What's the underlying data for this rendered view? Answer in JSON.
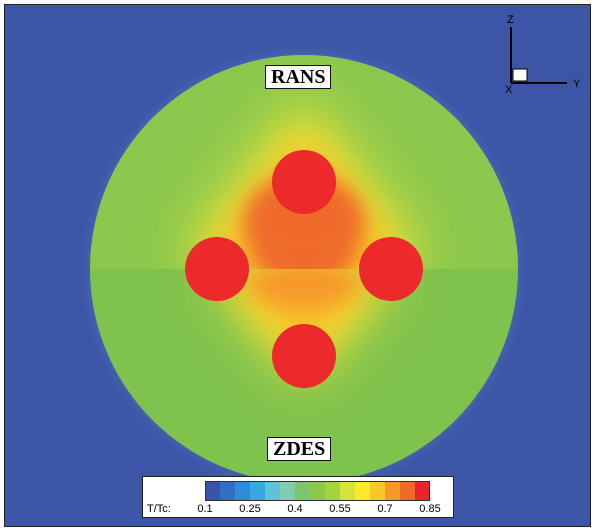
{
  "labels": {
    "upper": "RANS",
    "lower": "ZDES"
  },
  "axes": {
    "vertical": "Z",
    "horizontal": "Y",
    "out_of_plane": "X"
  },
  "colorbar": {
    "title": "T/Tc:",
    "ticks": [
      "0.1",
      "0.25",
      "0.4",
      "0.55",
      "0.7",
      "0.85"
    ],
    "min": 0.1,
    "max": 0.85,
    "levels": 15,
    "colors": [
      "#3a55a8",
      "#2f6fc4",
      "#2f8ad8",
      "#3aa8e0",
      "#5ec3d8",
      "#7ecdb0",
      "#7cc66a",
      "#8dc84a",
      "#a6d23f",
      "#d6e23a",
      "#fbe92c",
      "#f8c62a",
      "#f59a2a",
      "#ef6a2a",
      "#e8262a"
    ]
  },
  "field": {
    "background_color": "#3d55a6",
    "ambient_color": "#8dc84a",
    "hot_color": "#ec2a2b"
  }
}
